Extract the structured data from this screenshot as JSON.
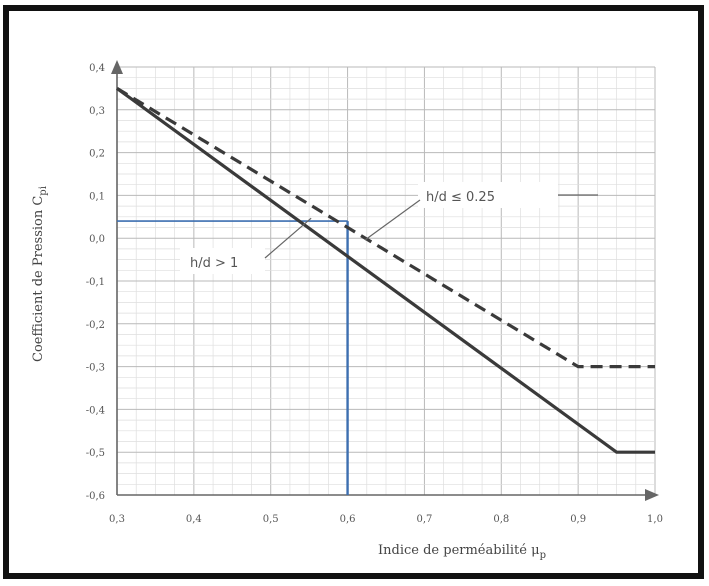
{
  "chart_data": {
    "type": "line",
    "title": "",
    "xlabel": "Indice de perméabilité",
    "xlabel_symbol": "μ",
    "xlabel_sub": "p",
    "ylabel": "Coefficient de Pression C",
    "ylabel_sub": "pi",
    "xlim": [
      0.3,
      1.0
    ],
    "ylim": [
      -0.6,
      0.4
    ],
    "x_ticks": [
      "0,3",
      "0,4",
      "0,5",
      "0,6",
      "0,7",
      "0,8",
      "0,9",
      "1,0"
    ],
    "y_ticks": [
      "-0,6",
      "-0,5",
      "-0,4",
      "-0,3",
      "-0,2",
      "-0,1",
      "0,0",
      "0,1",
      "0,2",
      "0,3",
      "0,4"
    ],
    "grid": true,
    "series": [
      {
        "name": "h/d > 1",
        "style": "solid",
        "color": "#3a3a3a",
        "x": [
          0.3,
          0.95,
          1.0
        ],
        "y": [
          0.35,
          -0.5,
          -0.5
        ]
      },
      {
        "name": "h/d ≤ 0.25",
        "style": "dashed",
        "color": "#3a3a3a",
        "x": [
          0.3,
          0.9,
          1.0
        ],
        "y": [
          0.35,
          -0.3,
          -0.3
        ]
      }
    ],
    "reference": {
      "color": "#3d6fb0",
      "x": 0.6,
      "y": 0.04
    },
    "annotations": [
      {
        "text": "h/d > 1",
        "target_x": 0.55,
        "target_y": 0.0
      },
      {
        "text": "h/d ≤ 0.25",
        "target_x": 0.58,
        "target_y": 0.03
      }
    ]
  }
}
